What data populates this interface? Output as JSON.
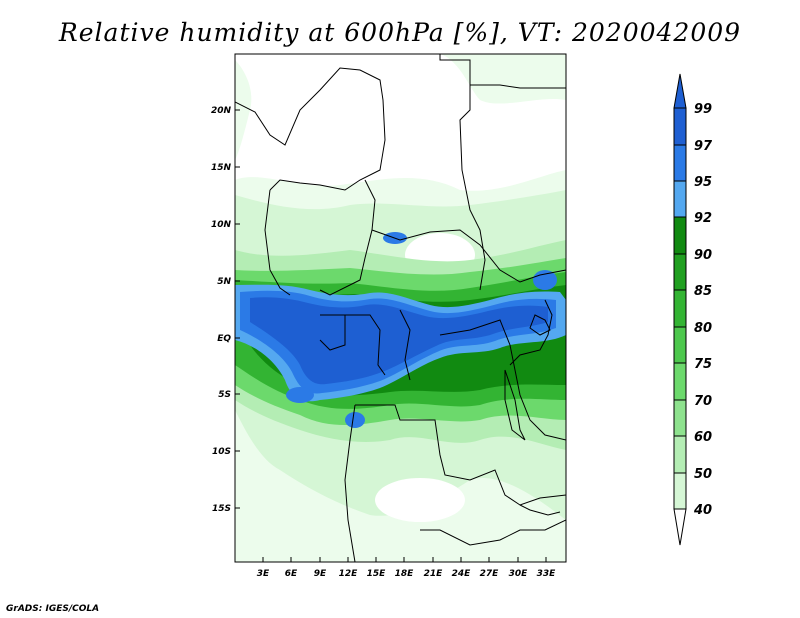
{
  "title": "Relative humidity at 600hPa [%], VT: 2020042009",
  "credit": "GrADS: IGES/COLA",
  "map": {
    "lat_ticks": [
      "20N",
      "15N",
      "10N",
      "5N",
      "EQ",
      "5S",
      "10S",
      "15S"
    ],
    "lon_ticks": [
      "3E",
      "6E",
      "9E",
      "12E",
      "15E",
      "18E",
      "21E",
      "24E",
      "27E",
      "30E",
      "33E"
    ],
    "lat_range": [
      -20,
      25
    ],
    "lon_range": [
      0,
      35
    ],
    "variable": "relative humidity",
    "level": "600hPa",
    "units": "%"
  },
  "colorbar": {
    "levels": [
      "99",
      "97",
      "95",
      "92",
      "90",
      "85",
      "80",
      "75",
      "70",
      "60",
      "50",
      "40"
    ],
    "colors": [
      "#1e5fd2",
      "#2b7ae6",
      "#54a8f0",
      "#118a11",
      "#21a021",
      "#33b433",
      "#4dc84d",
      "#6cd96c",
      "#8ee28e",
      "#b4edb4",
      "#d5f6d5",
      "#ecfcec"
    ]
  }
}
